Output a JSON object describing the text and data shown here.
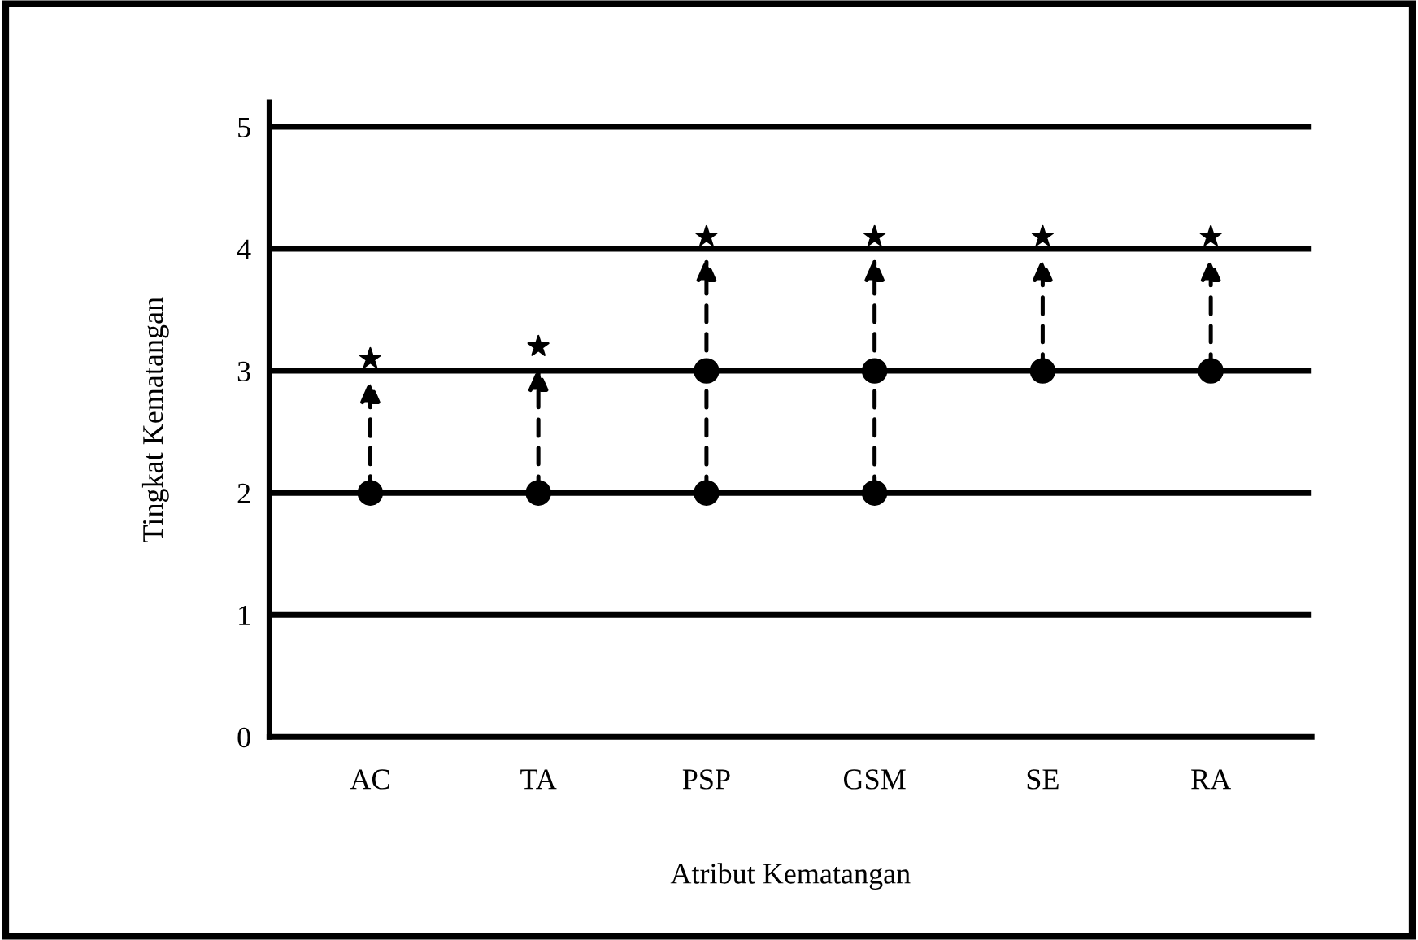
{
  "chart_data": {
    "type": "scatter",
    "xlabel": "Atribut Kematangan",
    "ylabel": "Tingkat Kematangan",
    "categories": [
      "AC",
      "TA",
      "PSP",
      "GSM",
      "SE",
      "RA"
    ],
    "series": [
      {
        "color": "#000000",
        "marker": "circle",
        "values": [
          2,
          2,
          2,
          2,
          3,
          3
        ]
      },
      {
        "color": "#000000",
        "marker": "circle",
        "values": [
          null,
          null,
          3,
          3,
          null,
          null
        ]
      },
      {
        "color": "#000000",
        "marker": "star",
        "values": [
          3.1,
          3.2,
          4.1,
          4.1,
          4.1,
          4.1
        ]
      }
    ],
    "ylim": [
      0,
      5.2
    ],
    "yticks": [
      0,
      1,
      2,
      3,
      4,
      5
    ],
    "grid": "y",
    "legend": false
  }
}
